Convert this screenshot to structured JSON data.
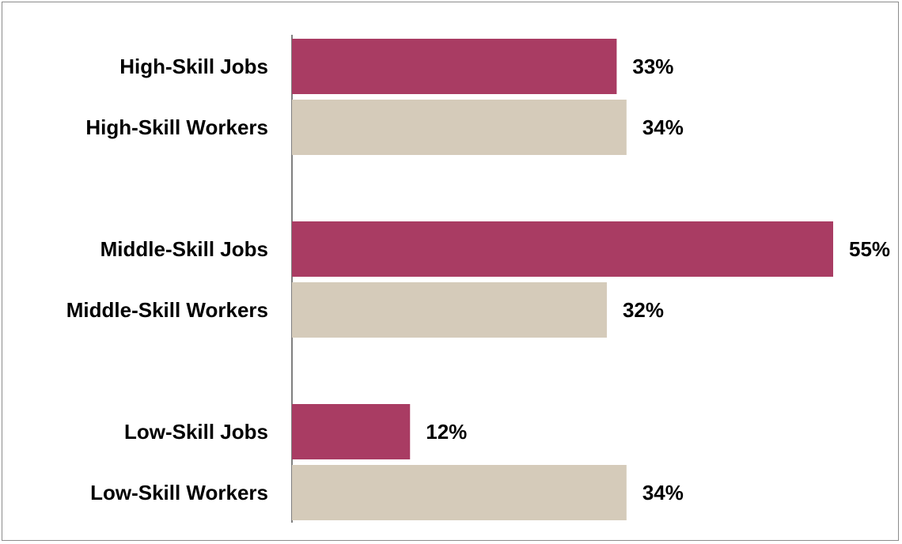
{
  "chart_data": {
    "type": "bar",
    "orientation": "horizontal",
    "categories": [
      "High-Skill Jobs",
      "High-Skill Workers",
      "Middle-Skill Jobs",
      "Middle-Skill Workers",
      "Low-Skill Jobs",
      "Low-Skill Workers"
    ],
    "values": [
      33,
      34,
      55,
      32,
      12,
      34
    ],
    "value_labels": [
      "33%",
      "34%",
      "55%",
      "32%",
      "12%",
      "34%"
    ],
    "bar_kinds": [
      "jobs",
      "workers",
      "jobs",
      "workers",
      "jobs",
      "workers"
    ],
    "xlim": [
      0,
      55
    ],
    "grid": false,
    "colors": {
      "jobs": "#a93c63",
      "workers": "#d5cbba",
      "axis": "#808080",
      "border": "#8c8c8c"
    }
  }
}
